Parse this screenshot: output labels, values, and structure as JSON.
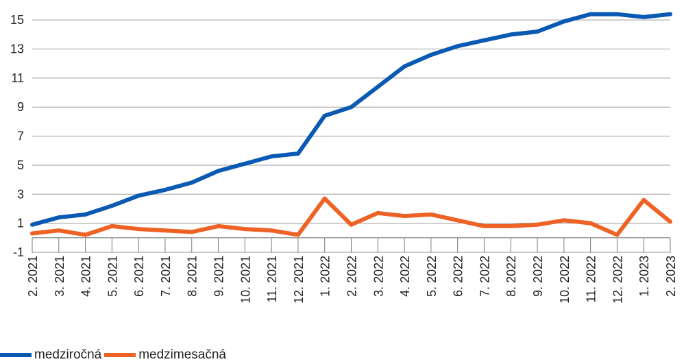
{
  "chart_data": {
    "type": "line",
    "title": "",
    "xlabel": "",
    "ylabel": "",
    "ylim": [
      -1,
      16
    ],
    "yticks": [
      "15",
      "13",
      "11",
      "9",
      "7",
      "5",
      "3",
      "1",
      "-1"
    ],
    "grid": true,
    "legend_position": "bottom-left",
    "categories": [
      "2. 2021",
      "3. 2021",
      "4. 2021",
      "5. 2021",
      "6. 2021",
      "7. 2021",
      "8. 2021",
      "9. 2021",
      "10. 2021",
      "11. 2021",
      "12. 2021",
      "1. 2022",
      "2. 2022",
      "3. 2022",
      "4. 2022",
      "5. 2022",
      "6. 2022",
      "7. 2022",
      "8. 2022",
      "9. 2022",
      "10. 2022",
      "11. 2022",
      "12. 2022",
      "1. 2023",
      "2. 2023"
    ],
    "series": [
      {
        "name": "medziročná",
        "color": "#0a5ab4",
        "values": [
          0.9,
          1.4,
          1.6,
          2.2,
          2.9,
          3.3,
          3.8,
          4.6,
          5.1,
          5.6,
          5.8,
          8.4,
          9.0,
          10.4,
          11.8,
          12.6,
          13.2,
          13.6,
          14.0,
          14.2,
          14.9,
          15.4,
          15.4,
          15.2,
          15.4
        ]
      },
      {
        "name": "medzimesačná",
        "color": "#ee6325",
        "values": [
          0.3,
          0.5,
          0.2,
          0.8,
          0.6,
          0.5,
          0.4,
          0.8,
          0.6,
          0.5,
          0.2,
          2.7,
          0.9,
          1.7,
          1.5,
          1.6,
          1.2,
          0.8,
          0.8,
          0.9,
          1.2,
          1.0,
          0.2,
          2.6,
          1.1
        ]
      }
    ]
  }
}
